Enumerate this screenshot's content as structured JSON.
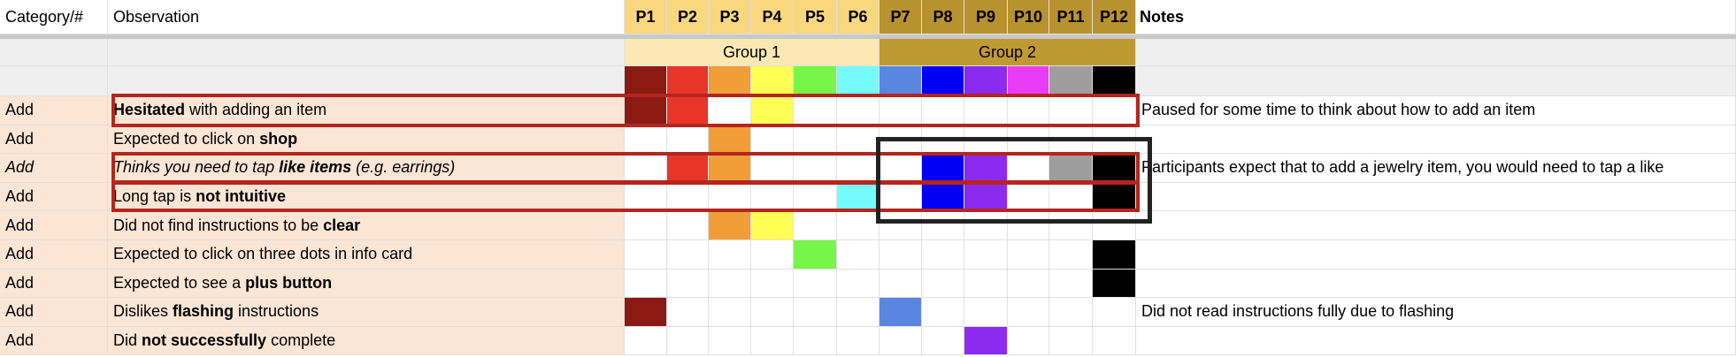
{
  "header": {
    "category": "Category/#",
    "observation": "Observation",
    "participants": [
      "P1",
      "P2",
      "P3",
      "P4",
      "P5",
      "P6",
      "P7",
      "P8",
      "P9",
      "P10",
      "P11",
      "P12"
    ],
    "notes": "Notes"
  },
  "groups": [
    {
      "label": "Group 1",
      "color": "#fce8b2",
      "header_color": "#f8d77e"
    },
    {
      "label": "Group 2",
      "color": "#bf9a33",
      "header_color": "#b8922e"
    }
  ],
  "participant_colors": [
    "#8b1a12",
    "#e8352a",
    "#f19e38",
    "#ffff55",
    "#78f54a",
    "#75fbfd",
    "#5b86e0",
    "#0000f5",
    "#8b2bf0",
    "#ea3cf7",
    "#9e9e9e",
    "#000000"
  ],
  "rows": [
    {
      "category": "Add",
      "observation": [
        {
          "text": "Hesitated",
          "bold": true
        },
        {
          "text": " with adding an item"
        }
      ],
      "marks": [
        true,
        true,
        false,
        true,
        false,
        false,
        false,
        false,
        false,
        false,
        false,
        false
      ],
      "notes": "Paused for some time to think about how to add an item"
    },
    {
      "category": "Add",
      "observation": [
        {
          "text": "Expected to click on "
        },
        {
          "text": "shop",
          "bold": true
        }
      ],
      "marks": [
        false,
        false,
        true,
        false,
        false,
        false,
        false,
        false,
        false,
        false,
        false,
        false
      ]
    },
    {
      "category": "Add",
      "italic": true,
      "observation": [
        {
          "text": "Thinks you need to tap "
        },
        {
          "text": "like items",
          "bold": true
        },
        {
          "text": " (e.g. earrings)"
        }
      ],
      "marks": [
        false,
        true,
        true,
        false,
        false,
        false,
        false,
        true,
        true,
        false,
        true,
        true
      ],
      "notes": "Participants expect that to add a jewelry item, you would need to tap a like"
    },
    {
      "category": "Add",
      "observation": [
        {
          "text": "Long tap is "
        },
        {
          "text": "not intuitive",
          "bold": true
        }
      ],
      "marks": [
        false,
        false,
        false,
        false,
        false,
        true,
        false,
        true,
        true,
        false,
        false,
        true
      ]
    },
    {
      "category": "Add",
      "observation": [
        {
          "text": "Did not find instructions to be "
        },
        {
          "text": "clear",
          "bold": true
        }
      ],
      "marks": [
        false,
        false,
        true,
        true,
        false,
        false,
        false,
        false,
        false,
        false,
        false,
        false
      ]
    },
    {
      "category": "Add",
      "observation": [
        {
          "text": "Expected to click on three dots in info card"
        }
      ],
      "marks": [
        false,
        false,
        false,
        false,
        true,
        false,
        false,
        false,
        false,
        false,
        false,
        true
      ]
    },
    {
      "category": "Add",
      "observation": [
        {
          "text": "Expected to see a "
        },
        {
          "text": "plus button",
          "bold": true
        }
      ],
      "marks": [
        false,
        false,
        false,
        false,
        false,
        false,
        false,
        false,
        false,
        false,
        false,
        true
      ]
    },
    {
      "category": "Add",
      "observation": [
        {
          "text": "Dislikes "
        },
        {
          "text": "flashing",
          "bold": true
        },
        {
          "text": " instructions"
        }
      ],
      "marks": [
        true,
        false,
        false,
        false,
        false,
        false,
        true,
        false,
        false,
        false,
        false,
        false
      ],
      "notes": "Did not read instructions fully due to flashing"
    },
    {
      "category": "Add",
      "observation": [
        {
          "text": "Did "
        },
        {
          "text": "not successfully",
          "bold": true
        },
        {
          "text": " complete"
        }
      ],
      "marks": [
        false,
        false,
        false,
        false,
        false,
        false,
        false,
        false,
        true,
        false,
        false,
        false
      ]
    }
  ]
}
